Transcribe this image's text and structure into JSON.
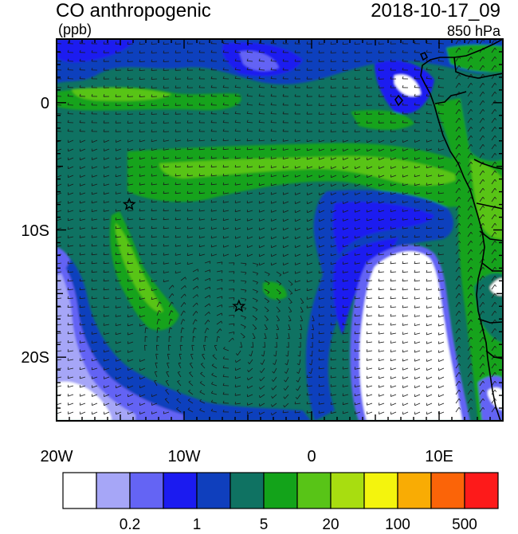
{
  "header": {
    "title": "CO anthropogenic",
    "units": "(ppb)",
    "date": "2018-10-17_09",
    "level": "850 hPa"
  },
  "map": {
    "lat_range": [
      -25,
      5
    ],
    "lon_range": [
      -20,
      15
    ],
    "lat_ticks": [
      {
        "value": 0,
        "label": "0"
      },
      {
        "value": -10,
        "label": "10S"
      },
      {
        "value": -20,
        "label": "20S"
      }
    ],
    "lon_ticks": [
      {
        "value": -20,
        "label": "20W"
      },
      {
        "value": -10,
        "label": "10W"
      },
      {
        "value": 0,
        "label": "0"
      },
      {
        "value": 10,
        "label": "10E"
      }
    ],
    "markers": [
      {
        "name": "star-marker",
        "lon": -14.3,
        "lat": -8.0
      },
      {
        "name": "star-marker",
        "lon": -5.7,
        "lat": -16.0
      }
    ]
  },
  "colorbar": {
    "colors": [
      "#ffffff",
      "#a6a6f7",
      "#6464f4",
      "#1b1bf0",
      "#0f3fbd",
      "#0f7262",
      "#13a31a",
      "#58c417",
      "#a8dd10",
      "#f4f40d",
      "#f9ac04",
      "#fb6408",
      "#fd1a1a"
    ],
    "tick_labels": [
      {
        "boundary": 2,
        "label": "0.2"
      },
      {
        "boundary": 4,
        "label": "1"
      },
      {
        "boundary": 6,
        "label": "5"
      },
      {
        "boundary": 8,
        "label": "20"
      },
      {
        "boundary": 10,
        "label": "100"
      },
      {
        "boundary": 12,
        "label": "500"
      }
    ]
  }
}
